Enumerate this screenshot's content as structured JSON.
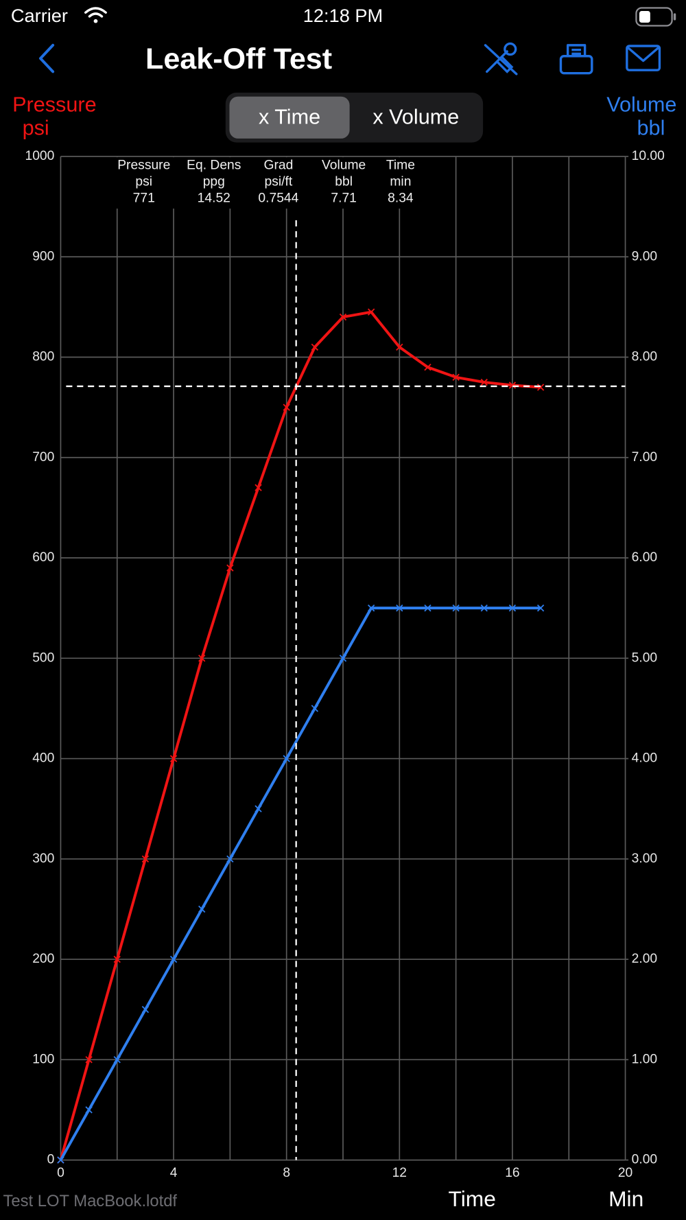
{
  "status_bar": {
    "carrier": "Carrier",
    "time": "12:18 PM"
  },
  "nav": {
    "title": "Leak-Off Test"
  },
  "segmented": {
    "options": [
      "x Time",
      "x Volume"
    ],
    "selected": 0
  },
  "footer": {
    "file": "Test LOT MacBook.lotdf"
  },
  "chart_data": {
    "type": "line",
    "y_label": "Pressure",
    "y_unit": "psi",
    "y2_label": "Volume",
    "y2_unit": "bbl",
    "x_label": "Time",
    "x_unit": "Min",
    "x": [
      0,
      1,
      2,
      3,
      4,
      5,
      6,
      7,
      8,
      9,
      10,
      11,
      12,
      13,
      14,
      15,
      16,
      17
    ],
    "series": [
      {
        "name": "Pressure",
        "color": "#f01414",
        "values": [
          0,
          100,
          200,
          300,
          400,
          500,
          590,
          670,
          750,
          810,
          840,
          845,
          810,
          790,
          780,
          775,
          772,
          770
        ]
      },
      {
        "name": "Volume",
        "color": "#2f7fef",
        "axis": "y2",
        "values": [
          0,
          0.5,
          1,
          1.5,
          2,
          2.5,
          3,
          3.5,
          4,
          4.5,
          5,
          5.5,
          5.5,
          5.5,
          5.5,
          5.5,
          5.5,
          5.5
        ]
      }
    ],
    "xlim": [
      0,
      20
    ],
    "xticks": [
      0,
      4,
      8,
      12,
      16,
      20
    ],
    "xminor_ticks": [
      2,
      6,
      10,
      14,
      18
    ],
    "ylim": [
      0,
      1000
    ],
    "yticks": [
      0,
      100,
      200,
      300,
      400,
      500,
      600,
      700,
      800,
      900,
      1000
    ],
    "y2lim": [
      0,
      10
    ],
    "y2ticks": [
      {
        "value": 0,
        "label": "0.00"
      },
      {
        "value": 1,
        "label": "1.00"
      },
      {
        "value": 2,
        "label": "2.00"
      },
      {
        "value": 3,
        "label": "3.00"
      },
      {
        "value": 4,
        "label": "4.00"
      },
      {
        "value": 5,
        "label": "5.00"
      },
      {
        "value": 6,
        "label": "6.00"
      },
      {
        "value": 7,
        "label": "7.00"
      },
      {
        "value": 8,
        "label": "8.00"
      },
      {
        "value": 9,
        "label": "9.00"
      },
      {
        "value": 10,
        "label": "10.00"
      }
    ],
    "grid": true,
    "readout": [
      {
        "name": "Pressure",
        "unit": "psi",
        "value": 771
      },
      {
        "name": "Eq. Dens",
        "unit": "ppg",
        "value": 14.52
      },
      {
        "name": "Grad",
        "unit": "psi/ft",
        "value": 0.7544
      },
      {
        "name": "Volume",
        "unit": "bbl",
        "value": 7.71
      },
      {
        "name": "Time",
        "unit": "min",
        "value": 8.34
      }
    ]
  }
}
